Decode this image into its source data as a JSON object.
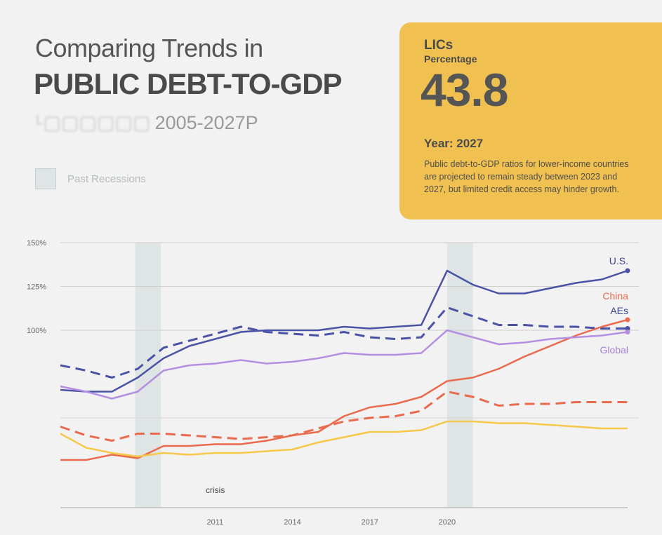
{
  "header": {
    "title_light": "Comparing Trends in",
    "title_bold": "PUBLIC DEBT-TO-GDP",
    "subtitle_blurred": "ᴸ▢▢▢▢▢▢",
    "subtitle_years": "2005-2027P"
  },
  "legend": {
    "recession_label": "Past Recessions",
    "recession_color": "#dfe5e5"
  },
  "callout": {
    "title": "LICs",
    "subtitle": "Percentage",
    "value": "43.8",
    "year_label": "Year: 2027",
    "description": "Public debt-to-GDP ratios for lower-income countries are projected to remain steady between 2023 and 2027, but limited credit access may hinder growth.",
    "background": "#f0c150"
  },
  "chart_data": {
    "type": "line",
    "y_ticks": [
      "150%",
      "125%",
      "100%"
    ],
    "ylim": [
      0,
      150
    ],
    "xlim": [
      2005,
      2027
    ],
    "x_ticks": [
      "2011",
      "2014",
      "2017",
      "2020"
    ],
    "recessions": [
      [
        2007.9,
        2008.9
      ],
      [
        2020,
        2021
      ]
    ],
    "annotation": "crisis",
    "series": [
      {
        "name": "U.S.",
        "color": "#4a52a6",
        "dash": false,
        "label_color": "#3d4590",
        "x": [
          2005,
          2006,
          2007,
          2008,
          2009,
          2010,
          2011,
          2012,
          2013,
          2014,
          2015,
          2016,
          2017,
          2018,
          2019,
          2020,
          2021,
          2022,
          2023,
          2024,
          2025,
          2026,
          2027
        ],
        "y": [
          66,
          65,
          65,
          73,
          84,
          91,
          95,
          99,
          100,
          100,
          100,
          102,
          101,
          102,
          103,
          134,
          126,
          121,
          121,
          124,
          127,
          129,
          134
        ]
      },
      {
        "name": "AEs",
        "color": "#4a52a6",
        "dash": true,
        "label_color": "#3d4590",
        "x": [
          2005,
          2006,
          2007,
          2008,
          2009,
          2010,
          2011,
          2012,
          2013,
          2014,
          2015,
          2016,
          2017,
          2018,
          2019,
          2020,
          2021,
          2022,
          2023,
          2024,
          2025,
          2026,
          2027
        ],
        "y": [
          80,
          77,
          73,
          78,
          90,
          94,
          98,
          102,
          99,
          98,
          97,
          99,
          96,
          95,
          96,
          113,
          108,
          103,
          103,
          102,
          102,
          101,
          101
        ]
      },
      {
        "name": "China",
        "color": "#ea6a4e",
        "dash": false,
        "label_color": "#ea6a4e",
        "x": [
          2005,
          2006,
          2007,
          2008,
          2009,
          2010,
          2011,
          2012,
          2013,
          2014,
          2015,
          2016,
          2017,
          2018,
          2019,
          2020,
          2021,
          2022,
          2023,
          2024,
          2025,
          2026,
          2027
        ],
        "y": [
          26,
          26,
          29,
          27,
          34,
          34,
          35,
          35,
          37,
          40,
          42,
          51,
          56,
          58,
          62,
          71,
          73,
          78,
          85,
          91,
          97,
          102,
          106
        ]
      },
      {
        "name": "",
        "color": "#ea6a4e",
        "dash": true,
        "label_color": "#ea6a4e",
        "x": [
          2005,
          2006,
          2007,
          2008,
          2009,
          2010,
          2011,
          2012,
          2013,
          2014,
          2015,
          2016,
          2017,
          2018,
          2019,
          2020,
          2021,
          2022,
          2023,
          2024,
          2025,
          2026,
          2027
        ],
        "y": [
          45,
          40,
          37,
          41,
          41,
          40,
          39,
          38,
          39,
          40,
          44,
          48,
          50,
          51,
          54,
          65,
          62,
          57,
          58,
          58,
          59,
          59,
          59
        ]
      },
      {
        "name": "Global",
        "color": "#b48ee0",
        "dash": false,
        "label_color": "#a882da",
        "x": [
          2005,
          2006,
          2007,
          2008,
          2009,
          2010,
          2011,
          2012,
          2013,
          2014,
          2015,
          2016,
          2017,
          2018,
          2019,
          2020,
          2021,
          2022,
          2023,
          2024,
          2025,
          2026,
          2027
        ],
        "y": [
          68,
          65,
          61,
          65,
          77,
          80,
          81,
          83,
          81,
          82,
          84,
          87,
          86,
          86,
          87,
          100,
          96,
          92,
          93,
          95,
          96,
          97,
          99
        ]
      },
      {
        "name": "",
        "color": "#f5c84a",
        "dash": false,
        "label_color": "#f5c84a",
        "x": [
          2005,
          2006,
          2007,
          2008,
          2009,
          2010,
          2011,
          2012,
          2013,
          2014,
          2015,
          2016,
          2017,
          2018,
          2019,
          2020,
          2021,
          2022,
          2023,
          2024,
          2025,
          2026,
          2027
        ],
        "y": [
          41,
          33,
          30,
          28,
          30,
          29,
          30,
          30,
          31,
          32,
          36,
          39,
          42,
          42,
          43,
          48,
          48,
          47,
          47,
          46,
          45,
          44,
          44
        ]
      }
    ]
  }
}
